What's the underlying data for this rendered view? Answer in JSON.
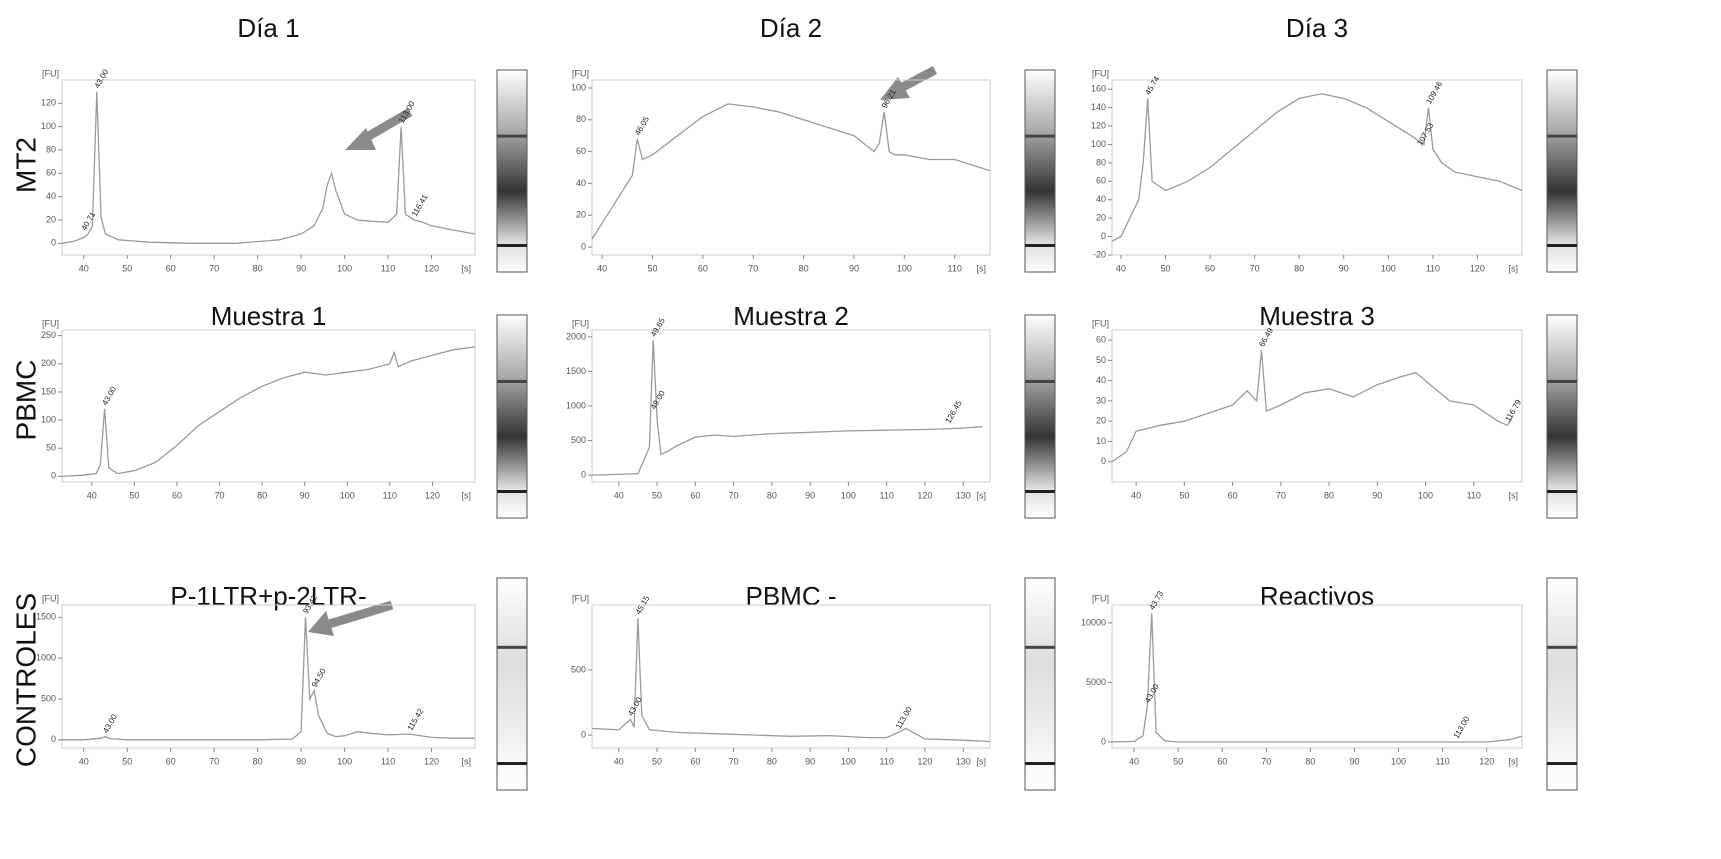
{
  "row_labels": [
    "MT2",
    "PBMC",
    "CONTROLES"
  ],
  "chart_data": [
    {
      "type": "line",
      "title": "Día 1",
      "y_label": "[FU]",
      "x_label": "[s]",
      "color": "#9a9a9a",
      "xlim": [
        35,
        130
      ],
      "xticks": [
        40,
        50,
        60,
        70,
        80,
        90,
        100,
        110,
        120
      ],
      "ylim": [
        -10,
        140
      ],
      "yticks": [
        0,
        20,
        40,
        60,
        80,
        100,
        120
      ],
      "x": [
        35,
        38,
        40,
        41,
        42,
        43,
        44,
        45,
        48,
        55,
        65,
        75,
        85,
        90,
        93,
        95,
        96,
        97,
        98,
        100,
        103,
        106,
        110,
        112,
        113,
        114,
        116,
        118,
        120,
        124,
        130
      ],
      "values": [
        0,
        2,
        5,
        8,
        15,
        130,
        22,
        8,
        3,
        1,
        0,
        0,
        3,
        8,
        15,
        30,
        50,
        60,
        45,
        25,
        20,
        19,
        18,
        25,
        100,
        25,
        20,
        18,
        15,
        12,
        8
      ],
      "annotations": [
        {
          "text": "43.00",
          "x": 43,
          "y": 130
        },
        {
          "text": "40.71",
          "x": 40,
          "y": 8
        },
        {
          "text": "113.00",
          "x": 113,
          "y": 100
        },
        {
          "text": "116.41",
          "x": 116,
          "y": 20
        }
      ]
    },
    {
      "type": "line",
      "title": "Día 2",
      "y_label": "[FU]",
      "x_label": "[s]",
      "color": "#9a9a9a",
      "xlim": [
        38,
        117
      ],
      "xticks": [
        40,
        50,
        60,
        70,
        80,
        90,
        100,
        110
      ],
      "ylim": [
        -5,
        105
      ],
      "yticks": [
        0,
        20,
        40,
        60,
        80,
        100
      ],
      "x": [
        38,
        40,
        42,
        44,
        46,
        47,
        48,
        50,
        55,
        60,
        65,
        70,
        75,
        80,
        85,
        90,
        94,
        95,
        96,
        97,
        98,
        100,
        105,
        110,
        115,
        117
      ],
      "values": [
        5,
        15,
        25,
        35,
        45,
        68,
        55,
        58,
        70,
        82,
        90,
        88,
        85,
        80,
        75,
        70,
        60,
        65,
        85,
        60,
        58,
        58,
        55,
        55,
        50,
        48
      ],
      "annotations": [
        {
          "text": "46.05",
          "x": 47,
          "y": 68
        },
        {
          "text": "96.21",
          "x": 96,
          "y": 85
        }
      ]
    },
    {
      "type": "line",
      "title": "Día 3",
      "y_label": "[FU]",
      "x_label": "[s]",
      "color": "#9a9a9a",
      "xlim": [
        38,
        130
      ],
      "xticks": [
        40,
        50,
        60,
        70,
        80,
        90,
        100,
        110,
        120
      ],
      "ylim": [
        -20,
        170
      ],
      "yticks": [
        -20,
        0,
        20,
        40,
        60,
        80,
        100,
        120,
        140,
        160
      ],
      "x": [
        38,
        40,
        42,
        44,
        45,
        46,
        47,
        50,
        55,
        60,
        65,
        70,
        75,
        80,
        85,
        90,
        95,
        100,
        105,
        108,
        109,
        110,
        112,
        115,
        120,
        125,
        130
      ],
      "values": [
        -5,
        0,
        20,
        40,
        80,
        150,
        60,
        50,
        60,
        75,
        95,
        115,
        135,
        150,
        155,
        150,
        140,
        125,
        110,
        100,
        140,
        95,
        80,
        70,
        65,
        60,
        50
      ],
      "annotations": [
        {
          "text": "45.74",
          "x": 46,
          "y": 150
        },
        {
          "text": "109.46",
          "x": 109,
          "y": 140
        },
        {
          "text": "107.53",
          "x": 107,
          "y": 95
        }
      ]
    },
    {
      "type": "line",
      "title": "Muestra 1",
      "y_label": "[FU]",
      "x_label": "[s]",
      "color": "#9a9a9a",
      "xlim": [
        33,
        130
      ],
      "xticks": [
        40,
        50,
        60,
        70,
        80,
        90,
        100,
        110,
        120
      ],
      "ylim": [
        -10,
        260
      ],
      "yticks": [
        0,
        50,
        100,
        150,
        200,
        250
      ],
      "x": [
        33,
        38,
        41,
        42,
        43,
        44,
        46,
        50,
        55,
        60,
        65,
        70,
        75,
        80,
        85,
        90,
        95,
        100,
        105,
        110,
        111,
        112,
        115,
        120,
        125,
        130
      ],
      "values": [
        0,
        2,
        5,
        20,
        120,
        15,
        5,
        10,
        25,
        55,
        90,
        115,
        140,
        160,
        175,
        185,
        180,
        185,
        190,
        200,
        220,
        195,
        205,
        215,
        225,
        230
      ],
      "annotations": [
        {
          "text": "43.00",
          "x": 43,
          "y": 120
        }
      ]
    },
    {
      "type": "line",
      "title": "Muestra 2",
      "y_label": "[FU]",
      "x_label": "[s]",
      "color": "#9a9a9a",
      "xlim": [
        33,
        137
      ],
      "xticks": [
        40,
        50,
        60,
        70,
        80,
        90,
        100,
        110,
        120,
        130
      ],
      "ylim": [
        -100,
        2100
      ],
      "yticks": [
        0,
        500,
        1000,
        1500,
        2000
      ],
      "x": [
        33,
        40,
        45,
        48,
        49,
        50,
        51,
        53,
        55,
        60,
        65,
        70,
        80,
        90,
        100,
        110,
        120,
        130,
        135
      ],
      "values": [
        0,
        10,
        20,
        400,
        1950,
        800,
        300,
        350,
        420,
        550,
        580,
        560,
        600,
        620,
        640,
        650,
        660,
        680,
        700
      ],
      "annotations": [
        {
          "text": "49.65",
          "x": 49,
          "y": 1950
        },
        {
          "text": "49.00",
          "x": 49,
          "y": 900
        },
        {
          "text": "126.45",
          "x": 126,
          "y": 700
        }
      ]
    },
    {
      "type": "line",
      "title": "Muestra 3",
      "y_label": "[FU]",
      "x_label": "[s]",
      "color": "#9a9a9a",
      "xlim": [
        35,
        120
      ],
      "xticks": [
        40,
        50,
        60,
        70,
        80,
        90,
        100,
        110
      ],
      "ylim": [
        -10,
        65
      ],
      "yticks": [
        0,
        10,
        20,
        30,
        40,
        50,
        60
      ],
      "x": [
        35,
        38,
        40,
        45,
        50,
        55,
        60,
        63,
        65,
        66,
        67,
        70,
        75,
        80,
        85,
        90,
        95,
        98,
        100,
        105,
        110,
        115,
        117,
        118
      ],
      "values": [
        0,
        5,
        15,
        18,
        20,
        24,
        28,
        35,
        30,
        55,
        25,
        28,
        34,
        36,
        32,
        38,
        42,
        44,
        40,
        30,
        28,
        20,
        18,
        22
      ],
      "annotations": [
        {
          "text": "66.49",
          "x": 66,
          "y": 55
        },
        {
          "text": "116.79",
          "x": 117,
          "y": 18
        }
      ]
    },
    {
      "type": "line",
      "title": "P-1LTR+p-2LTR-",
      "y_label": "[FU]",
      "x_label": "[s]",
      "color": "#9a9a9a",
      "xlim": [
        35,
        130
      ],
      "xticks": [
        40,
        50,
        60,
        70,
        80,
        90,
        100,
        110,
        120
      ],
      "ylim": [
        -100,
        1650
      ],
      "yticks": [
        0,
        500,
        1000,
        1500
      ],
      "x": [
        35,
        40,
        44,
        45,
        46,
        50,
        60,
        70,
        80,
        88,
        90,
        91,
        92,
        93,
        94,
        96,
        98,
        100,
        103,
        106,
        110,
        115,
        120,
        125,
        130
      ],
      "values": [
        0,
        0,
        20,
        40,
        15,
        0,
        0,
        0,
        0,
        10,
        100,
        1500,
        500,
        600,
        300,
        80,
        40,
        50,
        100,
        80,
        60,
        70,
        30,
        20,
        20
      ],
      "annotations": [
        {
          "text": "43.00",
          "x": 45,
          "y": 40
        },
        {
          "text": "93.42",
          "x": 91,
          "y": 1500
        },
        {
          "text": "94.50",
          "x": 93,
          "y": 600
        },
        {
          "text": "115.42",
          "x": 115,
          "y": 70
        }
      ]
    },
    {
      "type": "line",
      "title": "PBMC -",
      "y_label": "[FU]",
      "x_label": "[s]",
      "color": "#9a9a9a",
      "xlim": [
        33,
        137
      ],
      "xticks": [
        40,
        50,
        60,
        70,
        80,
        90,
        100,
        110,
        120,
        130
      ],
      "ylim": [
        -100,
        1000
      ],
      "yticks": [
        0,
        500
      ],
      "x": [
        33,
        40,
        43,
        44,
        45,
        46,
        48,
        55,
        65,
        75,
        85,
        95,
        105,
        110,
        113,
        115,
        120,
        130,
        137
      ],
      "values": [
        50,
        40,
        120,
        60,
        900,
        150,
        40,
        20,
        10,
        0,
        -10,
        -5,
        -20,
        -20,
        20,
        50,
        -30,
        -40,
        -50
      ],
      "annotations": [
        {
          "text": "45.15",
          "x": 45,
          "y": 900
        },
        {
          "text": "43.00",
          "x": 43,
          "y": 120
        },
        {
          "text": "113.00",
          "x": 113,
          "y": 20
        }
      ]
    },
    {
      "type": "line",
      "title": "Reactivos",
      "y_label": "[FU]",
      "x_label": "[s]",
      "color": "#9a9a9a",
      "xlim": [
        35,
        128
      ],
      "xticks": [
        40,
        50,
        60,
        70,
        80,
        90,
        100,
        110,
        120
      ],
      "ylim": [
        -500,
        11500
      ],
      "yticks": [
        0,
        5000,
        10000
      ],
      "x": [
        35,
        40,
        42,
        43,
        44,
        45,
        47,
        50,
        60,
        80,
        100,
        120,
        125,
        128
      ],
      "values": [
        0,
        50,
        500,
        3000,
        10800,
        800,
        100,
        0,
        0,
        0,
        0,
        0,
        200,
        500
      ],
      "annotations": [
        {
          "text": "43.73",
          "x": 44,
          "y": 10800
        },
        {
          "text": "43.00",
          "x": 43,
          "y": 3000
        },
        {
          "text": "113.00",
          "x": 113,
          "y": 0
        }
      ]
    }
  ]
}
